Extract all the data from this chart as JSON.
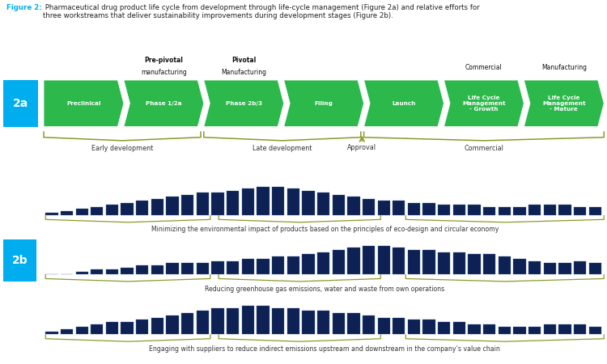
{
  "title_bold": "Figure 2:",
  "title_rest": " Pharmaceutical drug product life cycle from development through life-cycle management (Figure 2a) and relative efforts for\nthree workstreams that deliver sustainability improvements during development stages (Figure 2b).",
  "title_color": "#00AEEF",
  "title_rest_color": "#222222",
  "label_2a": "2a",
  "label_2b": "2b",
  "label_bg_color": "#00AEEF",
  "label_text_color": "#ffffff",
  "arrow_color": "#2DB84B",
  "arrow_stages": [
    "Preclinical",
    "Phase 1/2a",
    "Phase 2b/3",
    "Filing",
    "Launch",
    "Life Cycle\nManagement\n- Growth",
    "Life Cycle\nManagement\n- Mature"
  ],
  "above_labels": [
    "",
    "Pre-pivotal\nmanufacturing",
    "Pivotal\nManufacturing",
    "",
    "",
    "Commercial",
    "Manufacturing"
  ],
  "brace_color": "#8B9A2A",
  "bar_color": "#0D2154",
  "workstream1_heights": [
    1,
    2,
    3,
    4,
    5,
    6,
    7,
    8,
    9,
    10,
    11,
    11,
    12,
    13,
    14,
    14,
    13,
    12,
    11,
    10,
    9,
    8,
    7,
    7,
    6,
    6,
    5,
    5,
    5,
    4,
    4,
    4,
    5,
    5,
    5,
    4,
    4
  ],
  "workstream2_heights": [
    0,
    0,
    1,
    2,
    2,
    3,
    4,
    4,
    5,
    5,
    5,
    6,
    6,
    7,
    7,
    8,
    8,
    9,
    10,
    11,
    12,
    13,
    13,
    12,
    11,
    11,
    10,
    10,
    9,
    9,
    8,
    7,
    6,
    5,
    5,
    6,
    5
  ],
  "workstream3_heights": [
    1,
    2,
    3,
    4,
    5,
    5,
    6,
    7,
    8,
    9,
    10,
    11,
    11,
    12,
    12,
    11,
    11,
    10,
    10,
    9,
    9,
    8,
    7,
    7,
    6,
    6,
    5,
    5,
    4,
    4,
    3,
    3,
    3,
    4,
    4,
    4,
    3
  ],
  "workstream1_label": "Minimizing the environmental impact of products based on the principles of eco-design and circular economy",
  "workstream2_label": "Reducing greenhouse gas emissions, water and waste from own operations",
  "workstream3_label": "Engaging with suppliers to reduce indirect emissions upstream and downstream in the company’s value chain",
  "bg_color": "#ffffff"
}
